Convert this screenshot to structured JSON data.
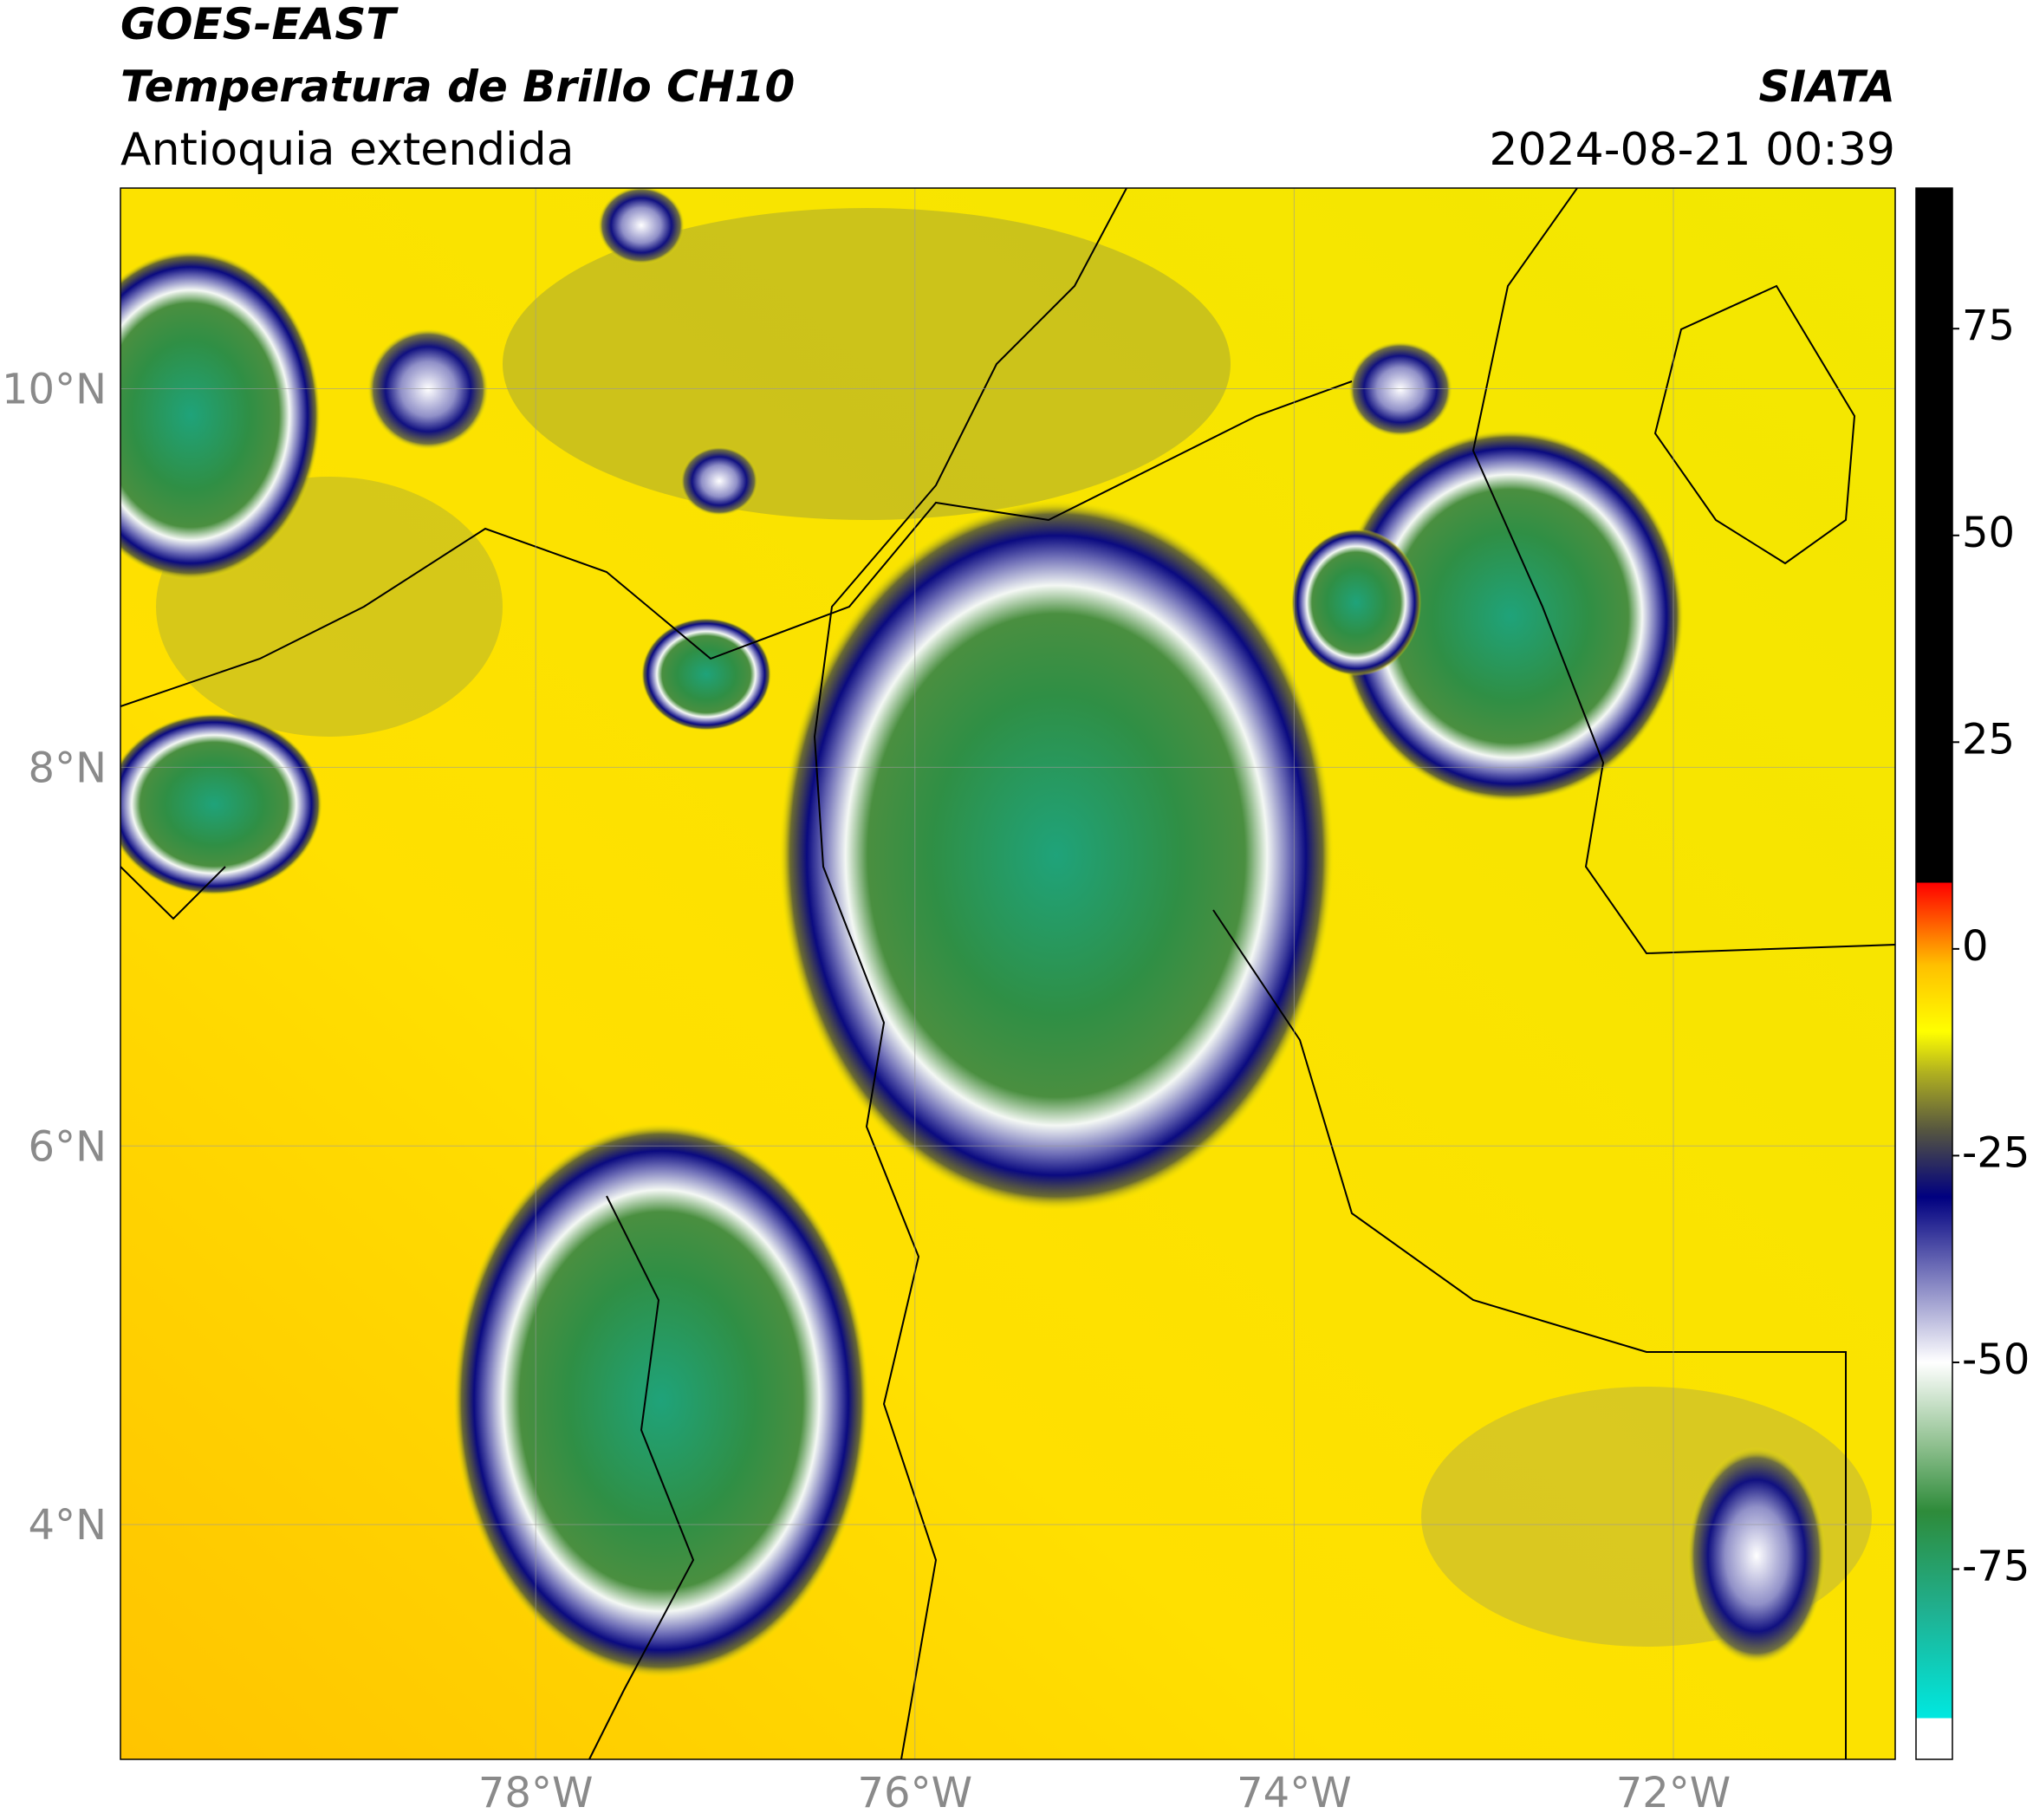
{
  "header": {
    "title": "GOES-EAST",
    "subtitle": "Temperatura de Brillo CH10",
    "region": "Antioquia extendida",
    "source": "SIATA",
    "datetime": "2024-08-21 00:39"
  },
  "map": {
    "xlim": [
      -80.19,
      -70.83
    ],
    "ylim": [
      2.76,
      11.06
    ],
    "xticks": [
      {
        "value": -78,
        "label": "78°W"
      },
      {
        "value": -76,
        "label": "76°W"
      },
      {
        "value": -74,
        "label": "74°W"
      },
      {
        "value": -72,
        "label": "72°W"
      }
    ],
    "yticks": [
      {
        "value": 4,
        "label": "4°N"
      },
      {
        "value": 6,
        "label": "6°N"
      },
      {
        "value": 8,
        "label": "8°N"
      },
      {
        "value": 10,
        "label": "10°N"
      }
    ],
    "grid": true
  },
  "colorbar": {
    "lim": [
      -98,
      92
    ],
    "ticks": [
      -75,
      -50,
      -25,
      0,
      25,
      50,
      75
    ],
    "stops": [
      {
        "value": -98,
        "color": "#ffffff"
      },
      {
        "value": -93,
        "color": "#ffffff"
      },
      {
        "value": -93,
        "color": "#00e8e0"
      },
      {
        "value": -80,
        "color": "#20b090"
      },
      {
        "value": -68,
        "color": "#2e8b3a"
      },
      {
        "value": -60,
        "color": "#8fc08f"
      },
      {
        "value": -50,
        "color": "#ffffff"
      },
      {
        "value": -40,
        "color": "#8080c0"
      },
      {
        "value": -30,
        "color": "#000080"
      },
      {
        "value": -22,
        "color": "#555540"
      },
      {
        "value": -15,
        "color": "#b0b020"
      },
      {
        "value": -10,
        "color": "#ffff00"
      },
      {
        "value": -2,
        "color": "#ffc000"
      },
      {
        "value": 8,
        "color": "#ff0000"
      },
      {
        "value": 8,
        "color": "#000000"
      },
      {
        "value": 92,
        "color": "#000000"
      }
    ]
  }
}
